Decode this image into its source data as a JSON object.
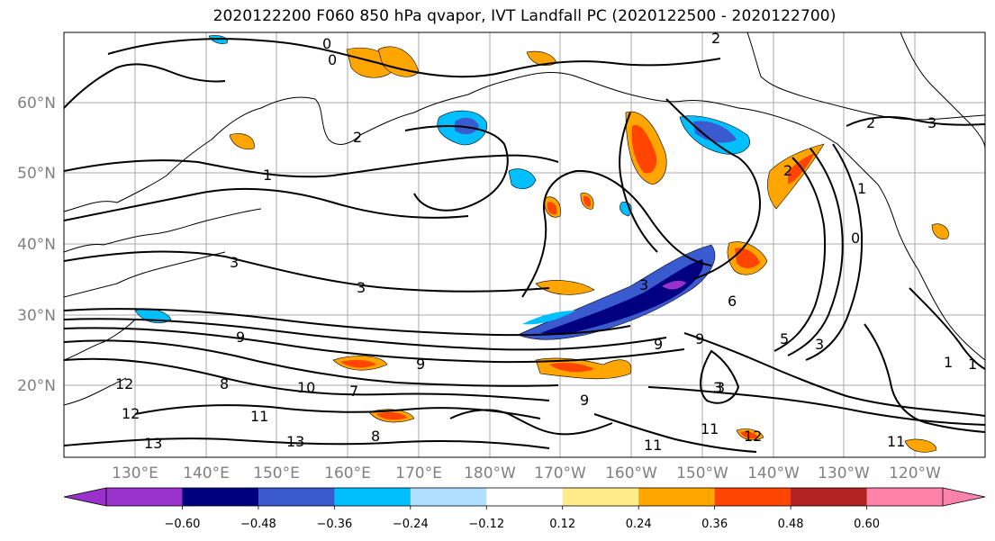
{
  "title": "2020122200 F060 850 hPa qvapor, IVT Landfall PC (2020122500 - 2020122700)",
  "lat_ticks": [
    "60°N",
    "50°N",
    "40°N",
    "30°N",
    "20°N"
  ],
  "lon_ticks": [
    "130°E",
    "140°E",
    "150°E",
    "160°E",
    "170°E",
    "180°W",
    "170°W",
    "160°W",
    "150°W",
    "140°W",
    "130°W",
    "120°W"
  ],
  "colorbar": {
    "colors": [
      "#9932cc",
      "#000080",
      "#3a5bd0",
      "#00bfff",
      "#b0e0ff",
      "#ffffff",
      "#ffec8b",
      "#ffa500",
      "#ff4500",
      "#b22222",
      "#ff82ab"
    ],
    "tick_labels": [
      "−0.60",
      "−0.48",
      "−0.36",
      "−0.24",
      "−0.12",
      "0.12",
      "0.24",
      "0.36",
      "0.48",
      "0.60"
    ]
  },
  "contour_labels": [
    "0",
    "0",
    "2",
    "1",
    "1",
    "3",
    "3",
    "9",
    "9",
    "12",
    "12",
    "13",
    "8",
    "10",
    "11",
    "13",
    "11",
    "9",
    "3",
    "6",
    "2",
    "0",
    "3",
    "9",
    "1",
    "3",
    "5",
    "3",
    "2",
    "11",
    "12",
    "11",
    "9",
    "8",
    "2",
    "3",
    "7",
    "1"
  ]
}
